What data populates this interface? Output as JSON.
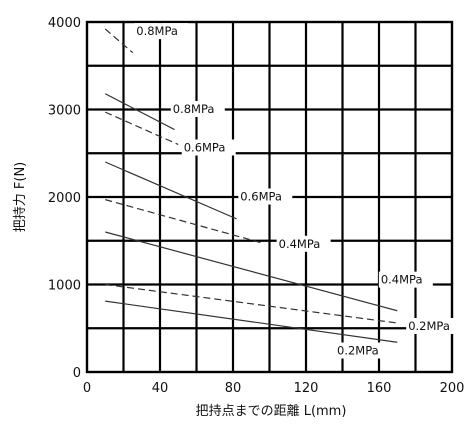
{
  "chart_data": {
    "type": "line",
    "title": "",
    "xlabel": "把持点までの距離  L(mm)",
    "ylabel": "把持力  F(N)",
    "xlim": [
      0,
      200
    ],
    "ylim": [
      0,
      4000
    ],
    "x_ticks": [
      0,
      40,
      80,
      120,
      160,
      200
    ],
    "y_ticks": [
      0,
      1000,
      2000,
      3000,
      4000
    ],
    "grid": true,
    "legend": "none (inline labels)",
    "series": [
      {
        "name": "0.8MPa",
        "style": "dashed",
        "x": [
          10,
          25
        ],
        "y": [
          3920,
          3650
        ]
      },
      {
        "name": "0.8MPa",
        "style": "solid",
        "x": [
          10,
          48
        ],
        "y": [
          3180,
          2770
        ]
      },
      {
        "name": "0.6MPa",
        "style": "dashed",
        "x": [
          10,
          50
        ],
        "y": [
          2970,
          2600
        ]
      },
      {
        "name": "0.6MPa",
        "style": "solid",
        "x": [
          10,
          82
        ],
        "y": [
          2400,
          1750
        ]
      },
      {
        "name": "0.4MPa",
        "style": "dashed",
        "x": [
          10,
          95
        ],
        "y": [
          1970,
          1480
        ]
      },
      {
        "name": "0.4MPa",
        "style": "solid",
        "x": [
          10,
          170
        ],
        "y": [
          1600,
          700
        ]
      },
      {
        "name": "0.2MPa",
        "style": "dashed",
        "x": [
          10,
          170
        ],
        "y": [
          1000,
          560
        ]
      },
      {
        "name": "0.2MPa",
        "style": "solid",
        "x": [
          10,
          170
        ],
        "y": [
          810,
          340
        ]
      }
    ],
    "series_labels": [
      {
        "text": "0.8MPa",
        "x": 27,
        "y": 3850
      },
      {
        "text": "0.8MPa",
        "x": 47,
        "y": 2960
      },
      {
        "text": "0.6MPa",
        "x": 53,
        "y": 2520
      },
      {
        "text": "0.6MPa",
        "x": 84,
        "y": 1960
      },
      {
        "text": "0.4MPa",
        "x": 105,
        "y": 1420
      },
      {
        "text": "0.4MPa",
        "x": 161,
        "y": 1010
      },
      {
        "text": "0.2MPa",
        "x": 176,
        "y": 480
      },
      {
        "text": "0.2MPa",
        "x": 137,
        "y": 200
      }
    ]
  }
}
